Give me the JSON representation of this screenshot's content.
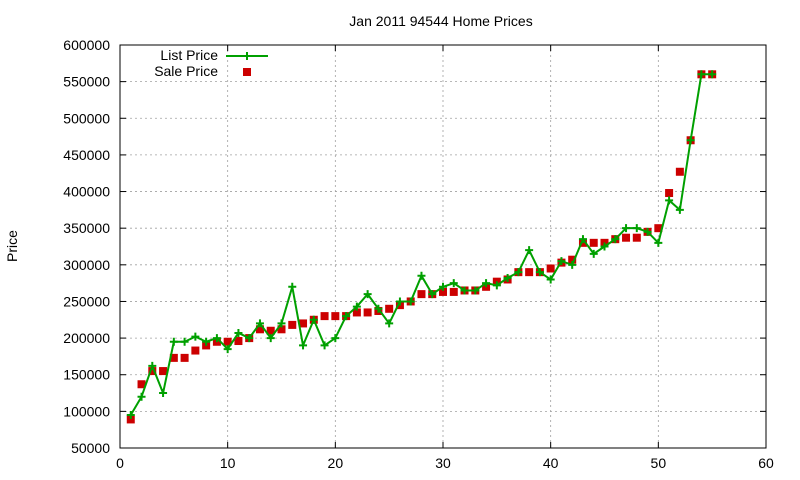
{
  "chart_data": {
    "type": "line",
    "title": "Jan 2011 94544 Home Prices",
    "xlabel": "",
    "ylabel": "Price",
    "xlim": [
      0,
      60
    ],
    "ylim": [
      50000,
      600000
    ],
    "xticks": [
      0,
      10,
      20,
      30,
      40,
      50,
      60
    ],
    "yticks": [
      50000,
      100000,
      150000,
      200000,
      250000,
      300000,
      350000,
      400000,
      450000,
      500000,
      550000,
      600000
    ],
    "grid": true,
    "legend_position": "top-left",
    "series": [
      {
        "name": "List Price",
        "style": "line-with-plus-markers",
        "color": "#00a000",
        "x": [
          1,
          2,
          3,
          4,
          5,
          6,
          7,
          8,
          9,
          10,
          11,
          12,
          13,
          14,
          15,
          16,
          17,
          18,
          19,
          20,
          21,
          22,
          23,
          24,
          25,
          26,
          27,
          28,
          29,
          30,
          31,
          32,
          33,
          34,
          35,
          36,
          37,
          38,
          39,
          40,
          41,
          42,
          43,
          44,
          45,
          46,
          47,
          48,
          49,
          50,
          51,
          52,
          53,
          54,
          55
        ],
        "y": [
          95000,
          120000,
          162000,
          125000,
          195000,
          195000,
          202000,
          195000,
          200000,
          185000,
          207000,
          200000,
          220000,
          200000,
          220000,
          270000,
          190000,
          225000,
          190000,
          200000,
          230000,
          243000,
          260000,
          240000,
          220000,
          250000,
          250000,
          285000,
          260000,
          270000,
          275000,
          265000,
          265000,
          275000,
          272000,
          282000,
          290000,
          320000,
          290000,
          280000,
          305000,
          300000,
          335000,
          315000,
          325000,
          335000,
          350000,
          350000,
          345000,
          330000,
          388000,
          375000,
          470000,
          560000,
          560000
        ]
      },
      {
        "name": "Sale Price",
        "style": "square-markers",
        "color": "#cc0000",
        "x": [
          1,
          2,
          3,
          4,
          5,
          6,
          7,
          8,
          9,
          10,
          11,
          12,
          13,
          14,
          15,
          16,
          17,
          18,
          19,
          20,
          21,
          22,
          23,
          24,
          25,
          26,
          27,
          28,
          29,
          30,
          31,
          32,
          33,
          34,
          35,
          36,
          37,
          38,
          39,
          40,
          41,
          42,
          43,
          44,
          45,
          46,
          47,
          48,
          49,
          50,
          51,
          52,
          53,
          54,
          55
        ],
        "y": [
          89000,
          137000,
          155000,
          155000,
          173000,
          173000,
          183000,
          190000,
          195000,
          195000,
          196000,
          200000,
          212000,
          210000,
          212000,
          218000,
          220000,
          225000,
          230000,
          230000,
          230000,
          235000,
          235000,
          237000,
          240000,
          245000,
          250000,
          260000,
          260000,
          263000,
          263000,
          265000,
          265000,
          270000,
          277000,
          280000,
          290000,
          290000,
          290000,
          295000,
          303000,
          307000,
          330000,
          330000,
          330000,
          335000,
          337000,
          337000,
          345000,
          350000,
          398000,
          427000,
          470000,
          560000,
          560000
        ]
      }
    ]
  }
}
